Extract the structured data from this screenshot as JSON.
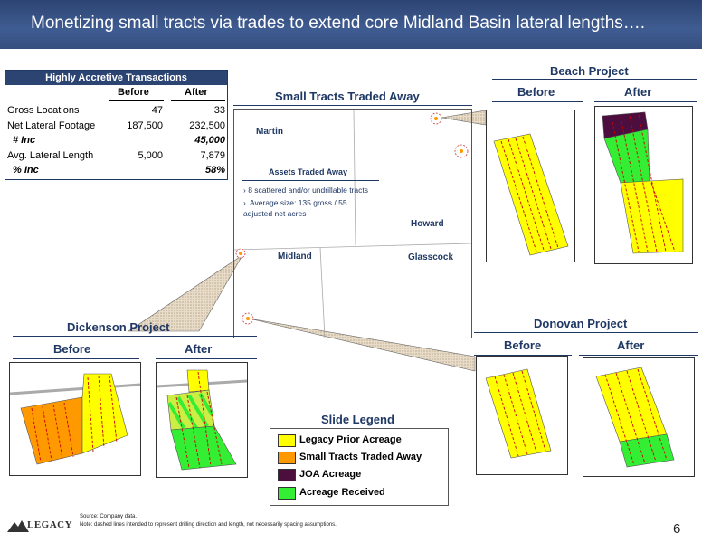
{
  "title": "Monetizing small tracts via trades to extend core Midland Basin lateral lengths….",
  "table": {
    "heading": "Highly Accretive Transactions",
    "col_before": "Before",
    "col_after": "After",
    "rows": [
      {
        "label": "Gross Locations",
        "before": "47",
        "after": "33"
      },
      {
        "label": "Net Lateral Footage",
        "before": "187,500",
        "after": "232,500"
      },
      {
        "label": "# Inc",
        "before": "",
        "after": "45,000"
      },
      {
        "label": "Avg. Lateral Length",
        "before": "5,000",
        "after": "7,879"
      },
      {
        "label": "% Inc",
        "before": "",
        "after": "58%"
      }
    ]
  },
  "map": {
    "title": "Small Tracts Traded Away",
    "counties": [
      "Martin",
      "Howard",
      "Midland",
      "Glasscock"
    ],
    "assets_title": "Assets Traded Away",
    "bullets": [
      "8 scattered and/or undrillable tracts",
      "Average size: 135 gross / 55 adjusted net acres"
    ]
  },
  "projects": {
    "beach": "Beach Project",
    "dickenson": "Dickenson Project",
    "donovan": "Donovan Project",
    "before": "Before",
    "after": "After"
  },
  "legend": {
    "title": "Slide Legend",
    "items": [
      {
        "label": "Legacy Prior Acreage",
        "color": "#ffff00"
      },
      {
        "label": "Small Tracts Traded Away",
        "color": "#ff9900"
      },
      {
        "label": "JOA Acreage",
        "color": "#4b0e3f"
      },
      {
        "label": "Acreage Received",
        "color": "#33ee33"
      }
    ]
  },
  "footer": {
    "source": "Source:   Company data.",
    "note": "Note: dashed lines intended to represent drilling direction and length, not necessarily spacing assumptions.",
    "logo": "LEGACY",
    "page": "6"
  }
}
